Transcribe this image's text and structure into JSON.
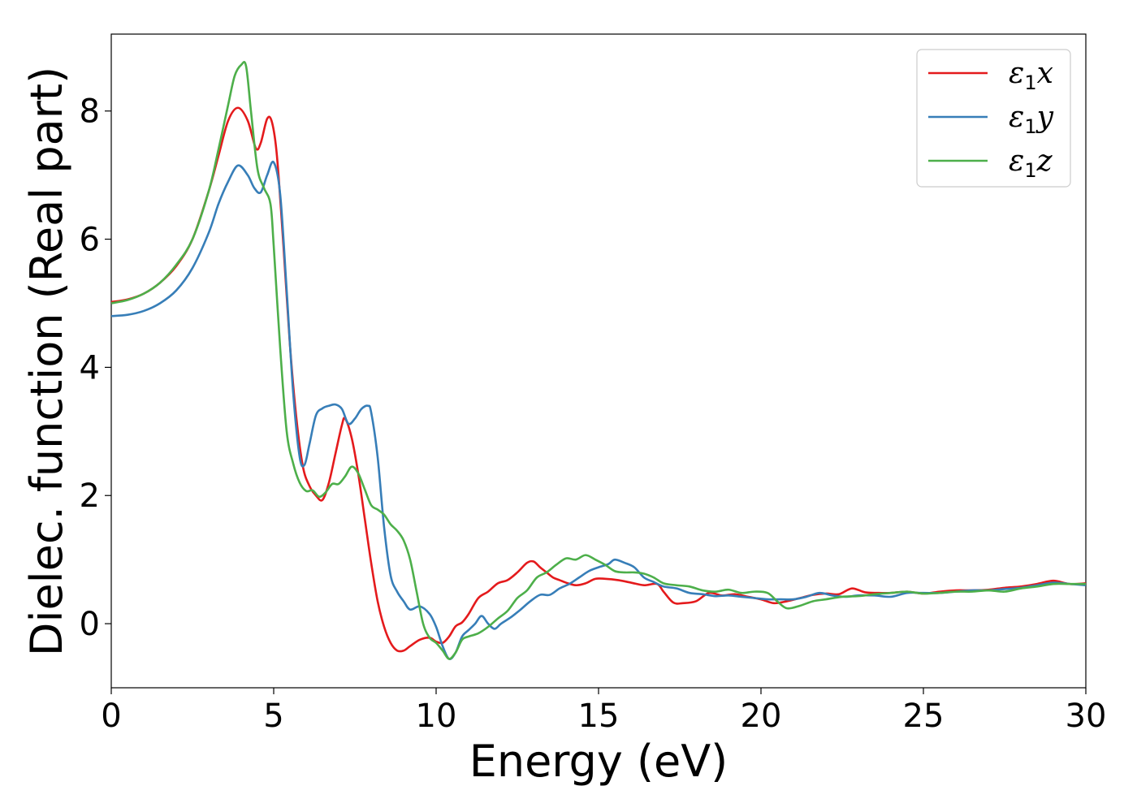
{
  "chart_data": {
    "type": "line",
    "xlabel": "Energy (eV)",
    "ylabel": "Dielec. function (Real part)",
    "xlim": [
      0,
      30
    ],
    "ylim": [
      -1.0,
      9.2
    ],
    "xticks": [
      0,
      5,
      10,
      15,
      20,
      25,
      30
    ],
    "yticks": [
      0,
      2,
      4,
      6,
      8
    ],
    "xtick_labels": [
      "0",
      "5",
      "10",
      "15",
      "20",
      "25",
      "30"
    ],
    "ytick_labels": [
      "0",
      "2",
      "4",
      "6",
      "8"
    ],
    "grid": false,
    "legend_position": "top-right",
    "series": [
      {
        "name": "ε1x",
        "legend_main": "ε",
        "legend_sub": "1",
        "legend_tail": "x",
        "color": "#e41a1c",
        "x": [
          0,
          0.5,
          1.0,
          1.5,
          2.0,
          2.5,
          3.0,
          3.3,
          3.6,
          3.9,
          4.2,
          4.45,
          4.6,
          4.8,
          4.95,
          5.1,
          5.3,
          5.5,
          5.7,
          5.9,
          6.1,
          6.3,
          6.5,
          6.7,
          6.9,
          7.1,
          7.2,
          7.4,
          7.6,
          7.8,
          8.0,
          8.2,
          8.4,
          8.6,
          8.8,
          9.0,
          9.2,
          9.5,
          9.8,
          10.0,
          10.2,
          10.4,
          10.6,
          10.8,
          11.0,
          11.3,
          11.6,
          11.9,
          12.2,
          12.5,
          12.8,
          13.0,
          13.2,
          13.4,
          13.6,
          13.8,
          14.0,
          14.3,
          14.6,
          14.9,
          15.2,
          15.6,
          16.0,
          16.4,
          16.8,
          17.0,
          17.3,
          17.6,
          18.0,
          18.4,
          18.8,
          19.2,
          19.6,
          20.0,
          20.4,
          20.8,
          21.2,
          21.6,
          22.0,
          22.4,
          22.8,
          23.2,
          23.6,
          24.0,
          24.5,
          25.0,
          25.5,
          26.0,
          26.5,
          27.0,
          27.5,
          28.0,
          28.5,
          29.0,
          29.5,
          30.0
        ],
        "y": [
          5.02,
          5.06,
          5.15,
          5.32,
          5.58,
          6.0,
          6.75,
          7.3,
          7.85,
          8.05,
          7.85,
          7.42,
          7.5,
          7.88,
          7.82,
          7.3,
          5.9,
          4.35,
          3.2,
          2.45,
          2.15,
          2.0,
          1.93,
          2.2,
          2.65,
          3.1,
          3.2,
          2.9,
          2.35,
          1.65,
          0.95,
          0.35,
          -0.05,
          -0.3,
          -0.42,
          -0.42,
          -0.35,
          -0.25,
          -0.22,
          -0.28,
          -0.3,
          -0.2,
          -0.04,
          0.02,
          0.15,
          0.4,
          0.5,
          0.63,
          0.68,
          0.8,
          0.95,
          0.97,
          0.88,
          0.8,
          0.72,
          0.68,
          0.64,
          0.6,
          0.63,
          0.7,
          0.7,
          0.68,
          0.64,
          0.6,
          0.62,
          0.5,
          0.33,
          0.32,
          0.35,
          0.48,
          0.44,
          0.46,
          0.42,
          0.38,
          0.32,
          0.35,
          0.4,
          0.45,
          0.47,
          0.46,
          0.55,
          0.49,
          0.48,
          0.48,
          0.5,
          0.47,
          0.5,
          0.52,
          0.52,
          0.53,
          0.56,
          0.58,
          0.62,
          0.67,
          0.62,
          0.63
        ]
      },
      {
        "name": "ε1y",
        "legend_main": "ε",
        "legend_sub": "1",
        "legend_tail": "y",
        "color": "#377eb8",
        "x": [
          0,
          0.5,
          1.0,
          1.5,
          2.0,
          2.5,
          3.0,
          3.3,
          3.6,
          3.9,
          4.2,
          4.4,
          4.6,
          4.8,
          5.0,
          5.2,
          5.4,
          5.6,
          5.8,
          5.95,
          6.1,
          6.3,
          6.5,
          6.7,
          6.9,
          7.1,
          7.3,
          7.5,
          7.7,
          7.9,
          8.0,
          8.2,
          8.4,
          8.6,
          8.8,
          9.0,
          9.2,
          9.5,
          9.8,
          10.0,
          10.2,
          10.4,
          10.6,
          10.8,
          11.0,
          11.2,
          11.4,
          11.6,
          11.8,
          12.0,
          12.3,
          12.6,
          12.9,
          13.2,
          13.5,
          13.8,
          14.1,
          14.4,
          14.7,
          15.0,
          15.3,
          15.5,
          15.8,
          16.1,
          16.4,
          16.7,
          17.0,
          17.4,
          17.8,
          18.2,
          18.6,
          19.0,
          19.4,
          19.8,
          20.2,
          20.6,
          21.0,
          21.4,
          21.8,
          22.2,
          22.6,
          23.0,
          23.5,
          24.0,
          24.5,
          25.0,
          25.5,
          26.0,
          26.5,
          27.0,
          27.5,
          28.0,
          28.5,
          29.0,
          29.5,
          30.0
        ],
        "y": [
          4.8,
          4.82,
          4.88,
          5.0,
          5.2,
          5.55,
          6.1,
          6.55,
          6.9,
          7.15,
          7.0,
          6.8,
          6.73,
          7.0,
          7.2,
          6.7,
          5.2,
          3.6,
          2.6,
          2.48,
          2.8,
          3.25,
          3.36,
          3.4,
          3.42,
          3.35,
          3.12,
          3.2,
          3.35,
          3.4,
          3.3,
          2.6,
          1.5,
          0.75,
          0.5,
          0.35,
          0.22,
          0.27,
          0.15,
          -0.05,
          -0.35,
          -0.55,
          -0.45,
          -0.2,
          -0.1,
          0.0,
          0.12,
          0.0,
          -0.08,
          0.0,
          0.1,
          0.22,
          0.35,
          0.45,
          0.45,
          0.55,
          0.62,
          0.72,
          0.82,
          0.88,
          0.93,
          1.0,
          0.95,
          0.88,
          0.72,
          0.65,
          0.58,
          0.55,
          0.48,
          0.46,
          0.43,
          0.44,
          0.42,
          0.4,
          0.38,
          0.38,
          0.38,
          0.42,
          0.48,
          0.44,
          0.42,
          0.44,
          0.44,
          0.42,
          0.48,
          0.48,
          0.48,
          0.5,
          0.52,
          0.52,
          0.54,
          0.56,
          0.6,
          0.64,
          0.62,
          0.6
        ]
      },
      {
        "name": "ε1z",
        "legend_main": "ε",
        "legend_sub": "1",
        "legend_tail": "z",
        "color": "#4daf4a",
        "x": [
          0,
          0.5,
          1.0,
          1.5,
          2.0,
          2.5,
          3.0,
          3.3,
          3.6,
          3.8,
          4.0,
          4.15,
          4.3,
          4.5,
          4.7,
          4.9,
          5.0,
          5.2,
          5.4,
          5.6,
          5.8,
          6.0,
          6.2,
          6.4,
          6.6,
          6.8,
          7.0,
          7.2,
          7.4,
          7.6,
          7.8,
          8.0,
          8.2,
          8.4,
          8.6,
          8.8,
          9.0,
          9.2,
          9.4,
          9.6,
          9.8,
          10.0,
          10.2,
          10.4,
          10.6,
          10.8,
          11.0,
          11.3,
          11.6,
          11.9,
          12.2,
          12.5,
          12.8,
          13.1,
          13.4,
          13.7,
          14.0,
          14.3,
          14.6,
          14.9,
          15.2,
          15.5,
          15.8,
          16.1,
          16.4,
          16.7,
          17.0,
          17.4,
          17.8,
          18.2,
          18.6,
          19.0,
          19.4,
          19.8,
          20.2,
          20.5,
          20.8,
          21.2,
          21.6,
          22.0,
          22.5,
          23.0,
          23.5,
          24.0,
          24.5,
          25.0,
          25.5,
          26.0,
          26.5,
          27.0,
          27.5,
          28.0,
          28.5,
          29.0,
          29.5,
          30.0
        ],
        "y": [
          5.0,
          5.05,
          5.15,
          5.32,
          5.6,
          6.0,
          6.75,
          7.4,
          8.1,
          8.55,
          8.72,
          8.7,
          8.0,
          7.1,
          6.8,
          6.55,
          5.9,
          4.3,
          3.0,
          2.5,
          2.2,
          2.07,
          2.08,
          1.98,
          2.05,
          2.18,
          2.18,
          2.3,
          2.45,
          2.35,
          2.1,
          1.85,
          1.78,
          1.7,
          1.55,
          1.45,
          1.3,
          1.0,
          0.5,
          0.0,
          -0.22,
          -0.3,
          -0.42,
          -0.55,
          -0.45,
          -0.25,
          -0.2,
          -0.15,
          -0.05,
          0.08,
          0.2,
          0.4,
          0.52,
          0.72,
          0.8,
          0.92,
          1.02,
          1.0,
          1.07,
          1.0,
          0.92,
          0.82,
          0.8,
          0.8,
          0.78,
          0.72,
          0.63,
          0.6,
          0.58,
          0.52,
          0.5,
          0.53,
          0.48,
          0.5,
          0.48,
          0.35,
          0.24,
          0.28,
          0.35,
          0.38,
          0.42,
          0.43,
          0.46,
          0.48,
          0.5,
          0.47,
          0.48,
          0.5,
          0.5,
          0.52,
          0.5,
          0.55,
          0.58,
          0.62,
          0.62,
          0.62
        ]
      }
    ]
  }
}
